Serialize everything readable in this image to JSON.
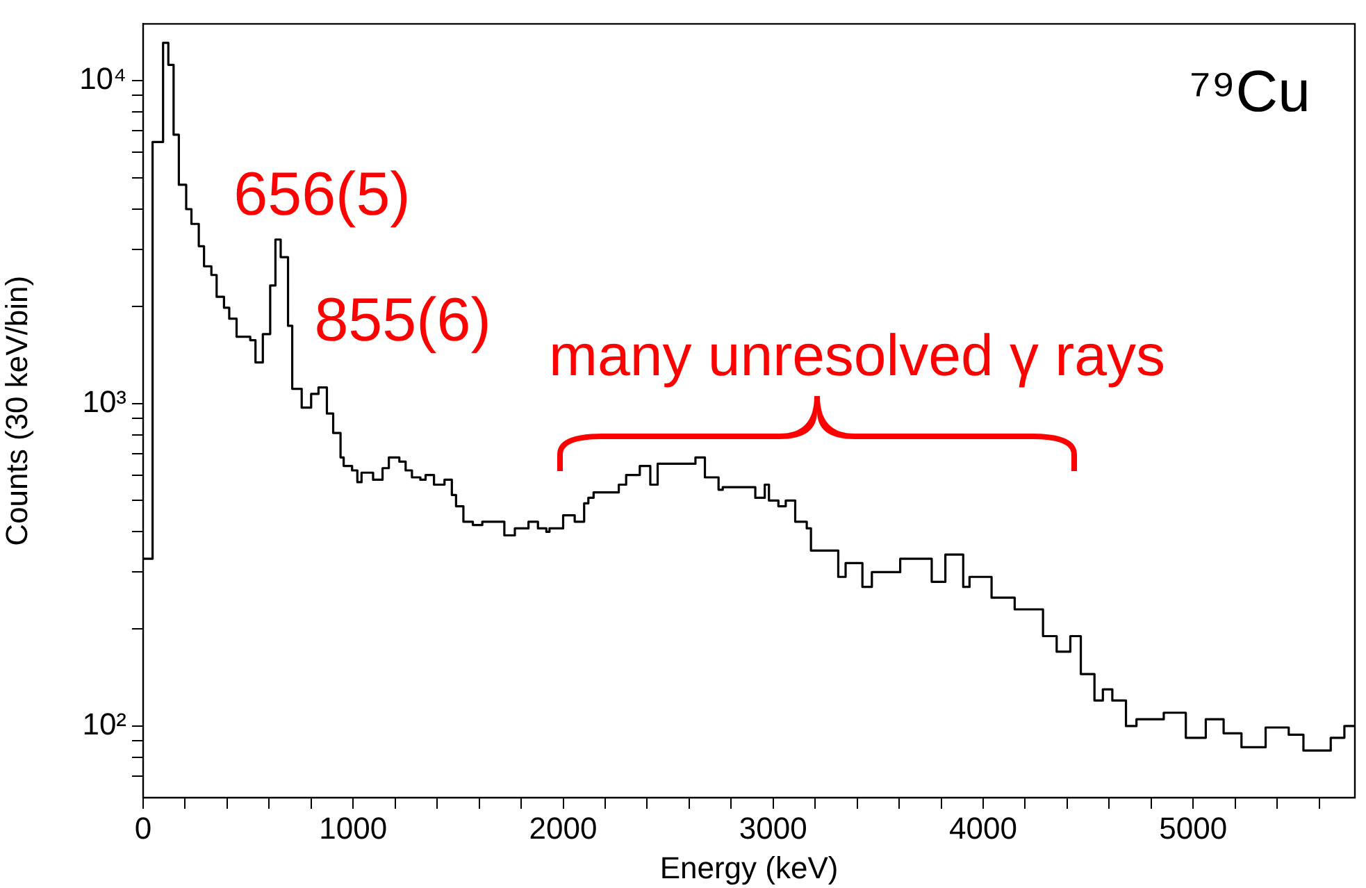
{
  "chart_data": {
    "type": "step",
    "xlabel": "Energy (keV)",
    "ylabel": "Counts (30 keV/bin)",
    "log": "y",
    "legend": false,
    "marker": "none",
    "line_style": "solid",
    "xlim": [
      0,
      5770
    ],
    "ylim": [
      60,
      15000
    ],
    "xticks": [
      0,
      {
        "value": 200,
        "label": null
      },
      {
        "value": 400,
        "label": null
      },
      {
        "value": 600,
        "label": null
      },
      {
        "value": 800,
        "label": null
      },
      1000,
      {
        "value": 1200,
        "label": null
      },
      {
        "value": 1400,
        "label": null
      },
      {
        "value": 1600,
        "label": null
      },
      {
        "value": 1800,
        "label": null
      },
      2000,
      {
        "value": 2200,
        "label": null
      },
      {
        "value": 2400,
        "label": null
      },
      {
        "value": 2600,
        "label": null
      },
      {
        "value": 2800,
        "label": null
      },
      3000,
      {
        "value": 3200,
        "label": null
      },
      {
        "value": 3400,
        "label": null
      },
      {
        "value": 3600,
        "label": null
      },
      {
        "value": 3800,
        "label": null
      },
      4000,
      {
        "value": 4200,
        "label": null
      },
      {
        "value": 4400,
        "label": null
      },
      {
        "value": 4600,
        "label": null
      },
      {
        "value": 4800,
        "label": null
      },
      5000,
      {
        "value": 5200,
        "label": null
      },
      {
        "value": 5400,
        "label": null
      },
      {
        "value": 5600,
        "label": null
      }
    ],
    "yticks": [
      {
        "value": 70,
        "label": null
      },
      {
        "value": 80,
        "label": null
      },
      {
        "value": 90,
        "label": null
      },
      {
        "value": 100,
        "label": "10²"
      },
      {
        "value": 200,
        "label": null
      },
      {
        "value": 300,
        "label": null
      },
      {
        "value": 400,
        "label": null
      },
      {
        "value": 500,
        "label": null
      },
      {
        "value": 600,
        "label": null
      },
      {
        "value": 700,
        "label": null
      },
      {
        "value": 800,
        "label": null
      },
      {
        "value": 900,
        "label": null
      },
      {
        "value": 1000,
        "label": "10³"
      },
      {
        "value": 2000,
        "label": null
      },
      {
        "value": 3000,
        "label": null
      },
      {
        "value": 4000,
        "label": null
      },
      {
        "value": 5000,
        "label": null
      },
      {
        "value": 6000,
        "label": null
      },
      {
        "value": 7000,
        "label": null
      },
      {
        "value": 8000,
        "label": null
      },
      {
        "value": 9000,
        "label": null
      },
      {
        "value": 10000,
        "label": "10⁴"
      }
    ],
    "series": [
      {
        "color": "#000000",
        "x": [
          0,
          45,
          95,
          120,
          145,
          170,
          205,
          230,
          265,
          290,
          325,
          350,
          385,
          410,
          445,
          510,
          535,
          570,
          605,
          630,
          655,
          690,
          710,
          755,
          800,
          835,
          875,
          905,
          940,
          955,
          995,
          1020,
          1040,
          1095,
          1140,
          1170,
          1220,
          1250,
          1280,
          1320,
          1345,
          1385,
          1435,
          1470,
          1490,
          1525,
          1570,
          1615,
          1655,
          1720,
          1770,
          1835,
          1880,
          1920,
          1935,
          2000,
          2055,
          2100,
          2120,
          2145,
          2265,
          2300,
          2365,
          2415,
          2450,
          2630,
          2675,
          2740,
          2760,
          2915,
          2960,
          2980,
          3025,
          3060,
          3105,
          3160,
          3180,
          3310,
          3345,
          3425,
          3470,
          3605,
          3755,
          3820,
          3905,
          3935,
          4040,
          4150,
          4285,
          4350,
          4415,
          4465,
          4530,
          4570,
          4615,
          4680,
          4730,
          4860,
          4965,
          5060,
          5145,
          5230,
          5345,
          5455,
          5525,
          5590,
          5655,
          5720,
          5770
        ],
        "values": [
          330,
          6460,
          13100,
          11200,
          6800,
          4760,
          4000,
          3600,
          3070,
          2660,
          2500,
          2140,
          1980,
          1830,
          1610,
          1570,
          1340,
          1640,
          2320,
          3220,
          2840,
          1740,
          1110,
          970,
          1070,
          1120,
          930,
          810,
          680,
          640,
          620,
          570,
          610,
          580,
          630,
          680,
          660,
          620,
          590,
          580,
          600,
          560,
          580,
          520,
          480,
          430,
          420,
          430,
          430,
          390,
          410,
          430,
          410,
          400,
          410,
          450,
          430,
          490,
          510,
          530,
          560,
          600,
          640,
          560,
          650,
          680,
          590,
          540,
          550,
          510,
          560,
          500,
          480,
          500,
          430,
          410,
          350,
          290,
          320,
          270,
          300,
          330,
          280,
          340,
          270,
          290,
          250,
          230,
          190,
          170,
          190,
          145,
          120,
          130,
          120,
          100,
          105,
          110,
          92,
          105,
          95,
          86,
          99,
          94,
          84,
          84,
          92,
          100,
          100
        ]
      }
    ],
    "annotations": [
      {
        "text": "656(5)",
        "x": 656,
        "y": 3220
      },
      {
        "text": "855(6)",
        "x": 855,
        "y": 1120
      },
      "⁷⁹Cu",
      "many unresolved γ rays"
    ]
  }
}
